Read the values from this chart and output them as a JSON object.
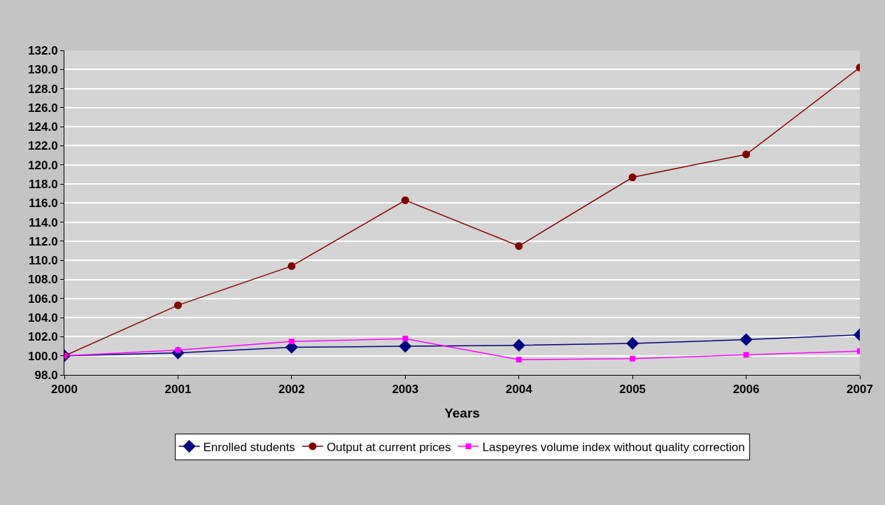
{
  "chart_data": {
    "type": "line",
    "xlabel": "Years",
    "x": [
      2000,
      2001,
      2002,
      2003,
      2004,
      2005,
      2006,
      2007
    ],
    "xlim": [
      2000,
      2007
    ],
    "xticks": [
      2000,
      2001,
      2002,
      2003,
      2004,
      2005,
      2006,
      2007
    ],
    "ylim": [
      98,
      132
    ],
    "yticks": [
      {
        "value": 98,
        "label": "98.0"
      },
      {
        "value": 100,
        "label": "100.0"
      },
      {
        "value": 102,
        "label": "102.0"
      },
      {
        "value": 104,
        "label": "104.0"
      },
      {
        "value": 106,
        "label": "106.0"
      },
      {
        "value": 108,
        "label": "108.0"
      },
      {
        "value": 110,
        "label": "110.0"
      },
      {
        "value": 112,
        "label": "112.0"
      },
      {
        "value": 114,
        "label": "114.0"
      },
      {
        "value": 116,
        "label": "116.0"
      },
      {
        "value": 118,
        "label": "118.0"
      },
      {
        "value": 120,
        "label": "120.0"
      },
      {
        "value": 122,
        "label": "122.0"
      },
      {
        "value": 124,
        "label": "124.0"
      },
      {
        "value": 126,
        "label": "126.0"
      },
      {
        "value": 128,
        "label": "128.0"
      },
      {
        "value": 130,
        "label": "130.0"
      },
      {
        "value": 132,
        "label": "132.0"
      }
    ],
    "grid": "y",
    "legend": "bottom",
    "line_style": "solid",
    "series": [
      {
        "name": "Enrolled students",
        "color": "#000080",
        "marker": "diamond",
        "values": [
          100,
          100.3,
          100.9,
          101.0,
          101.1,
          101.3,
          101.7,
          102.2
        ]
      },
      {
        "name": "Output at current prices",
        "color": "#800000",
        "marker": "circle",
        "values": [
          100,
          105.3,
          109.4,
          116.3,
          111.5,
          118.7,
          121.1,
          130.2
        ]
      },
      {
        "name": "Laspeyres volume index without quality correction",
        "color": "#ff00ff",
        "marker": "square",
        "values": [
          100,
          100.6,
          101.5,
          101.8,
          99.6,
          99.7,
          100.1,
          100.5
        ]
      }
    ]
  }
}
